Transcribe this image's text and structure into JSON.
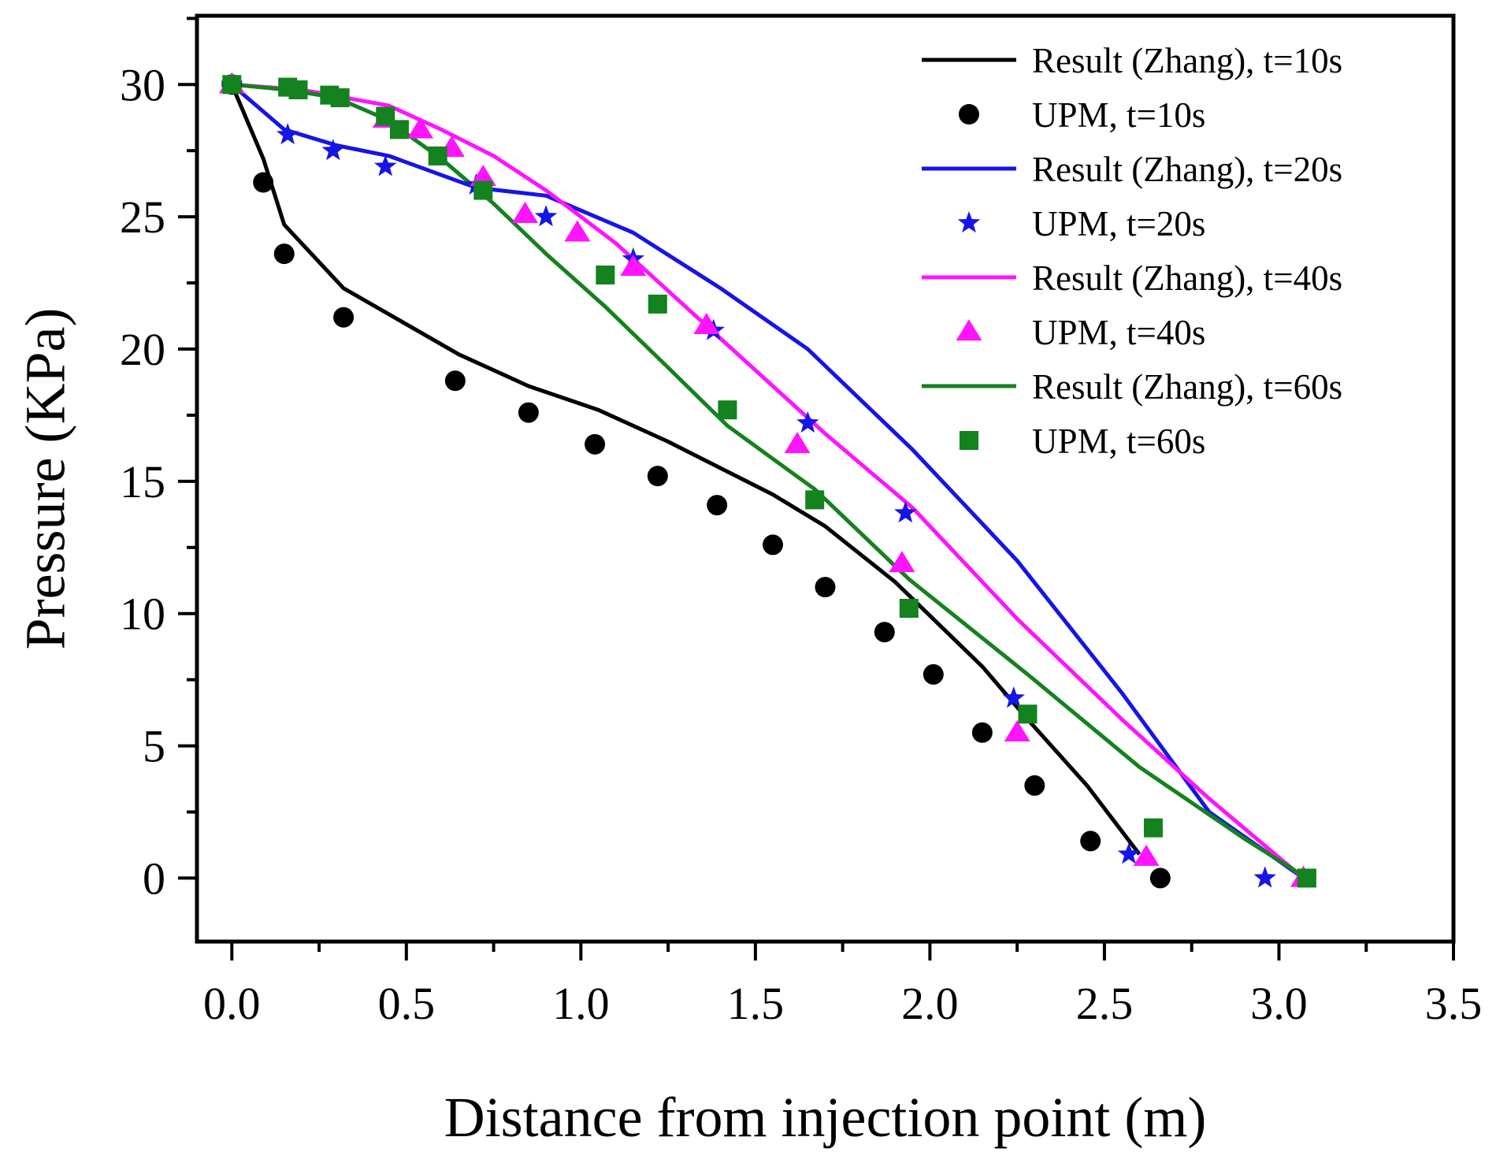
{
  "chart_data": {
    "type": "line",
    "xlabel": "Distance from injection point (m)",
    "ylabel": "Pressure (KPa)",
    "xlim": [
      -0.1,
      3.5
    ],
    "ylim": [
      -2.4,
      32.6
    ],
    "xticks": [
      "0.0",
      "0.5",
      "1.0",
      "1.5",
      "2.0",
      "2.5",
      "3.0",
      "3.5"
    ],
    "yticks": [
      "0",
      "5",
      "10",
      "15",
      "20",
      "25",
      "30"
    ],
    "legend_position": "top-right",
    "series": [
      {
        "name": "Result (Zhang), t=10s",
        "kind": "line",
        "color": "#000000",
        "x": [
          0,
          0.09,
          0.15,
          0.32,
          0.65,
          0.85,
          1.05,
          1.25,
          1.55,
          1.7,
          1.9,
          2.15,
          2.28,
          2.45,
          2.6
        ],
        "y": [
          30,
          27.2,
          24.7,
          22.3,
          19.8,
          18.6,
          17.7,
          16.5,
          14.5,
          13.3,
          11.2,
          8.0,
          6.0,
          3.5,
          0.9
        ]
      },
      {
        "name": "UPM, t=10s",
        "kind": "marker",
        "marker": "circle",
        "color": "#000000",
        "x": [
          0,
          0.09,
          0.15,
          0.32,
          0.64,
          0.85,
          1.04,
          1.22,
          1.39,
          1.55,
          1.7,
          1.87,
          2.01,
          2.15,
          2.3,
          2.46,
          2.66
        ],
        "y": [
          30,
          26.3,
          23.6,
          21.2,
          18.8,
          17.6,
          16.4,
          15.2,
          14.1,
          12.6,
          11.0,
          9.3,
          7.7,
          5.5,
          3.5,
          1.4,
          0
        ]
      },
      {
        "name": "Result (Zhang), t=20s",
        "kind": "line",
        "color": "#1515e6",
        "x": [
          0,
          0.15,
          0.3,
          0.45,
          0.7,
          0.9,
          1.15,
          1.4,
          1.65,
          1.95,
          2.25,
          2.55,
          2.8,
          3.07
        ],
        "y": [
          30,
          28.3,
          27.7,
          27.3,
          26.1,
          25.8,
          24.4,
          22.3,
          20.0,
          16.2,
          12.0,
          7.0,
          2.5,
          0
        ]
      },
      {
        "name": "UPM, t=20s",
        "kind": "marker",
        "marker": "star",
        "color": "#1515e6",
        "x": [
          0,
          0.16,
          0.29,
          0.44,
          0.7,
          0.9,
          1.15,
          1.38,
          1.65,
          1.93,
          2.24,
          2.57,
          2.96
        ],
        "y": [
          30,
          28.1,
          27.5,
          26.9,
          26.2,
          25.0,
          23.4,
          20.7,
          17.2,
          13.8,
          6.8,
          0.9,
          0
        ]
      },
      {
        "name": "Result (Zhang), t=40s",
        "kind": "line",
        "color": "#ff14ff",
        "x": [
          0,
          0.2,
          0.45,
          0.6,
          0.75,
          0.9,
          1.1,
          1.3,
          1.5,
          1.7,
          1.95,
          2.25,
          2.55,
          2.8,
          3.07
        ],
        "y": [
          30,
          29.8,
          29.2,
          28.3,
          27.3,
          26.0,
          24.0,
          21.6,
          19.2,
          16.8,
          14.0,
          9.8,
          6.0,
          3.0,
          0
        ]
      },
      {
        "name": "UPM, t=40s",
        "kind": "marker",
        "marker": "triangle",
        "color": "#ff14ff",
        "x": [
          0,
          0.44,
          0.54,
          0.63,
          0.72,
          0.84,
          0.99,
          1.15,
          1.36,
          1.62,
          1.92,
          2.25,
          2.62,
          3.07
        ],
        "y": [
          30,
          28.7,
          28.3,
          27.6,
          26.5,
          25.1,
          24.4,
          23.1,
          20.9,
          16.4,
          11.9,
          5.5,
          0.8,
          0
        ]
      },
      {
        "name": "Result (Zhang), t=60s",
        "kind": "line",
        "color": "#14821e",
        "x": [
          0,
          0.16,
          0.3,
          0.44,
          0.6,
          0.75,
          0.9,
          1.07,
          1.25,
          1.42,
          1.67,
          1.94,
          2.28,
          2.6,
          2.9,
          3.08
        ],
        "y": [
          30,
          29.8,
          29.5,
          28.7,
          27.2,
          25.5,
          23.6,
          21.6,
          19.3,
          17.1,
          14.7,
          11.3,
          7.7,
          4.2,
          1.5,
          0
        ]
      },
      {
        "name": "UPM, t=60s",
        "kind": "marker",
        "marker": "square",
        "color": "#14821e",
        "x": [
          0,
          0.16,
          0.19,
          0.28,
          0.31,
          0.44,
          0.48,
          0.59,
          0.72,
          1.07,
          1.22,
          1.42,
          1.67,
          1.94,
          2.28,
          2.64,
          3.08
        ],
        "y": [
          30,
          29.9,
          29.8,
          29.6,
          29.5,
          28.8,
          28.3,
          27.3,
          26.0,
          22.8,
          21.7,
          17.7,
          14.3,
          10.2,
          6.2,
          1.9,
          0
        ]
      }
    ]
  }
}
